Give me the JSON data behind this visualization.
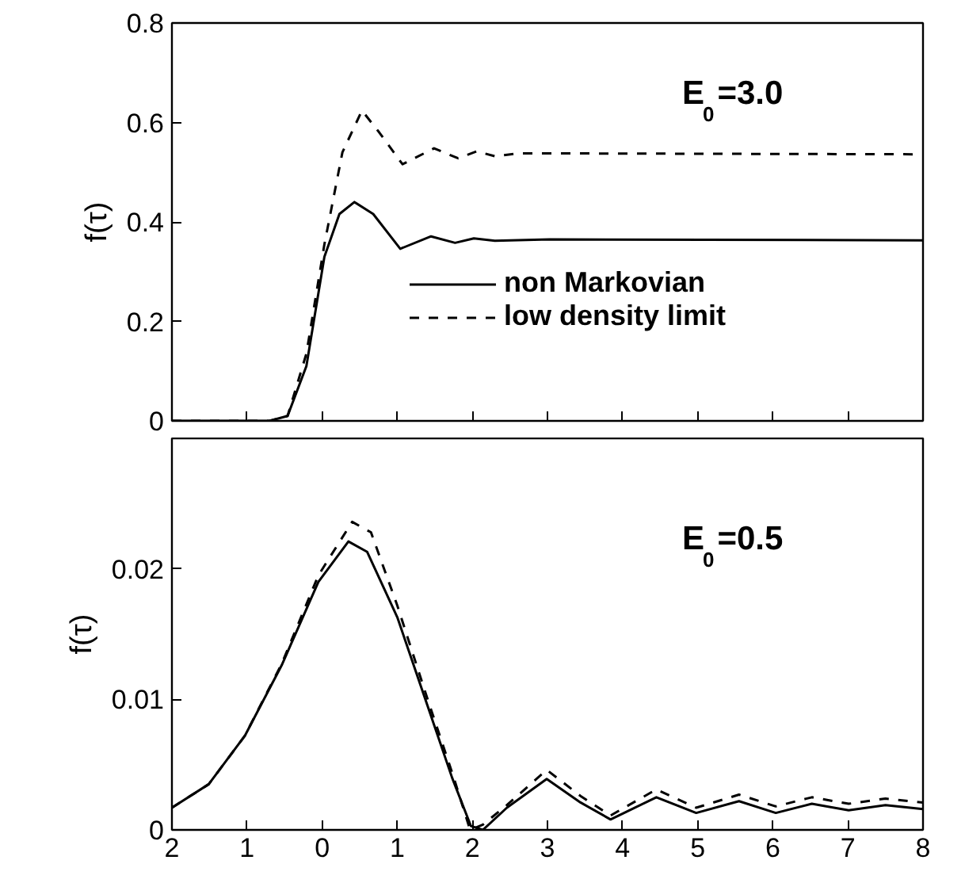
{
  "chart_data": [
    {
      "type": "line",
      "ylabel": "f(τ)",
      "annotations": [
        "E$_{0}$=3.0"
      ],
      "xlim": [
        -2,
        8
      ],
      "ylim": [
        0,
        0.8
      ],
      "xticks": [
        -1,
        0,
        1,
        2,
        3,
        4,
        5,
        6,
        7
      ],
      "yticks": [
        0,
        0.2,
        0.4,
        0.6,
        0.8
      ],
      "tick_labels": "y",
      "grid": false,
      "legend": "bottom right",
      "series": [
        {
          "name": "non Markovian",
          "color": "#000000",
          "line_style": "solid",
          "x": [
            -2,
            -0.7,
            -0.46,
            -0.21,
            0.03,
            0.23,
            0.43,
            0.68,
            1.04,
            1.45,
            1.77,
            2.02,
            2.3,
            3.03,
            8
          ],
          "values": [
            0,
            0,
            0.01,
            0.11,
            0.33,
            0.416,
            0.44,
            0.416,
            0.346,
            0.371,
            0.358,
            0.367,
            0.362,
            0.365,
            0.363
          ]
        },
        {
          "name": "low density limit",
          "color": "#000000",
          "line_style": "dashed",
          "x": [
            -2,
            -0.7,
            -0.46,
            -0.21,
            0.03,
            0.27,
            0.53,
            0.76,
            1.07,
            1.49,
            1.81,
            2.06,
            2.3,
            2.63,
            8
          ],
          "values": [
            0,
            0,
            0.01,
            0.135,
            0.355,
            0.54,
            0.624,
            0.58,
            0.516,
            0.548,
            0.528,
            0.542,
            0.532,
            0.538,
            0.536
          ]
        }
      ]
    },
    {
      "type": "line",
      "ylabel": "f(τ)",
      "annotations": [
        "E$_{0}$=0.5"
      ],
      "xlim": [
        -2,
        8
      ],
      "ylim": [
        0,
        0.03
      ],
      "xticks": [
        {
          "value": -2,
          "label": "2"
        },
        {
          "value": -1,
          "label": "1"
        },
        0,
        1,
        2,
        3,
        4,
        5,
        6,
        7,
        8
      ],
      "yticks": [
        0,
        0.01,
        0.02
      ],
      "grid": false,
      "series": [
        {
          "color": "#000000",
          "line_style": "solid",
          "x": [
            -2,
            -1.51,
            -1.03,
            -0.54,
            -0.05,
            0.35,
            0.6,
            1.0,
            1.41,
            1.73,
            1.98,
            2.14,
            2.46,
            2.99,
            3.44,
            3.84,
            4.45,
            4.98,
            5.55,
            6.04,
            6.52,
            7.01,
            7.5,
            8
          ],
          "values": [
            0.0017,
            0.0035,
            0.0072,
            0.0126,
            0.019,
            0.0221,
            0.0213,
            0.0163,
            0.0094,
            0.004,
            0.0003,
            0,
            0.0017,
            0.0039,
            0.0021,
            0.0008,
            0.0025,
            0.0013,
            0.0022,
            0.0013,
            0.002,
            0.0015,
            0.0019,
            0.0016
          ]
        },
        {
          "color": "#000000",
          "line_style": "dashed",
          "x": [
            -2,
            -1.51,
            -1.03,
            -0.54,
            -0.05,
            0.4,
            0.65,
            1.0,
            1.41,
            1.73,
            1.97,
            2.14,
            2.46,
            2.99,
            3.44,
            3.84,
            4.45,
            4.98,
            5.55,
            6.04,
            6.52,
            7.01,
            7.5,
            8
          ],
          "values": [
            0.0017,
            0.0035,
            0.0072,
            0.0127,
            0.0195,
            0.0236,
            0.0228,
            0.0172,
            0.0099,
            0.0044,
            0,
            0.0004,
            0.0019,
            0.0046,
            0.0026,
            0.0011,
            0.0031,
            0.0017,
            0.0027,
            0.0018,
            0.0025,
            0.002,
            0.0024,
            0.0021
          ]
        }
      ]
    }
  ]
}
